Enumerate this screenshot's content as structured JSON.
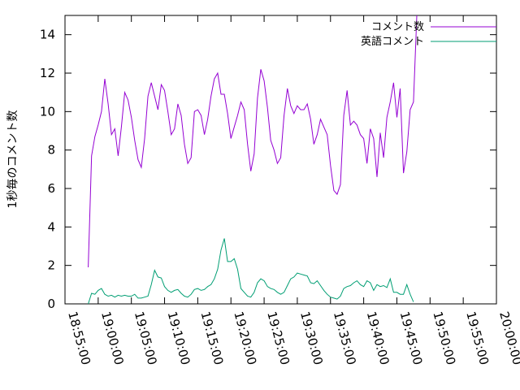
{
  "chart_data": {
    "type": "line",
    "title": "",
    "xlabel": "",
    "ylabel": "1秒毎のコメント数",
    "xlim": [
      "18:55:00",
      "20:00:00"
    ],
    "ylim": [
      0,
      15
    ],
    "yticks": [
      0,
      2,
      4,
      6,
      8,
      10,
      12,
      14
    ],
    "xticks": [
      "18:55:00",
      "19:00:00",
      "19:05:00",
      "19:10:00",
      "19:15:00",
      "19:20:00",
      "19:25:00",
      "19:30:00",
      "19:35:00",
      "19:40:00",
      "19:45:00",
      "19:50:00",
      "19:55:00",
      "20:00:00"
    ],
    "grid": false,
    "legend_position": "top-right",
    "series": [
      {
        "name": "コメント数",
        "color": "#9400d3",
        "points": [
          [
            "18:58:30",
            1.9
          ],
          [
            "18:59:00",
            7.7
          ],
          [
            "18:59:30",
            8.7
          ],
          [
            "19:00:00",
            9.3
          ],
          [
            "19:00:30",
            10.0
          ],
          [
            "19:01:00",
            11.7
          ],
          [
            "19:01:30",
            10.4
          ],
          [
            "19:02:00",
            8.8
          ],
          [
            "19:02:30",
            9.1
          ],
          [
            "19:03:00",
            7.7
          ],
          [
            "19:03:30",
            9.2
          ],
          [
            "19:04:00",
            11.0
          ],
          [
            "19:04:30",
            10.6
          ],
          [
            "19:05:00",
            9.7
          ],
          [
            "19:05:30",
            8.5
          ],
          [
            "19:06:00",
            7.5
          ],
          [
            "19:06:30",
            7.1
          ],
          [
            "19:07:00",
            8.6
          ],
          [
            "19:07:30",
            10.8
          ],
          [
            "19:08:00",
            11.5
          ],
          [
            "19:08:30",
            10.8
          ],
          [
            "19:09:00",
            10.1
          ],
          [
            "19:09:30",
            11.4
          ],
          [
            "19:10:00",
            11.1
          ],
          [
            "19:10:30",
            10.0
          ],
          [
            "19:11:00",
            8.8
          ],
          [
            "19:11:30",
            9.1
          ],
          [
            "19:12:00",
            10.4
          ],
          [
            "19:12:30",
            9.8
          ],
          [
            "19:13:00",
            8.3
          ],
          [
            "19:13:30",
            7.3
          ],
          [
            "19:14:00",
            7.6
          ],
          [
            "19:14:30",
            10.0
          ],
          [
            "19:15:00",
            10.1
          ],
          [
            "19:15:30",
            9.8
          ],
          [
            "19:16:00",
            8.8
          ],
          [
            "19:16:30",
            9.6
          ],
          [
            "19:17:00",
            10.8
          ],
          [
            "19:17:30",
            11.7
          ],
          [
            "19:18:00",
            12.0
          ],
          [
            "19:18:30",
            10.9
          ],
          [
            "19:19:00",
            10.9
          ],
          [
            "19:19:30",
            9.9
          ],
          [
            "19:20:00",
            8.6
          ],
          [
            "19:20:30",
            9.2
          ],
          [
            "19:21:00",
            9.8
          ],
          [
            "19:21:30",
            10.5
          ],
          [
            "19:22:00",
            10.1
          ],
          [
            "19:22:30",
            8.3
          ],
          [
            "19:23:00",
            6.9
          ],
          [
            "19:23:30",
            7.8
          ],
          [
            "19:24:00",
            10.7
          ],
          [
            "19:24:30",
            12.2
          ],
          [
            "19:25:00",
            11.6
          ],
          [
            "19:25:30",
            10.2
          ],
          [
            "19:26:00",
            8.5
          ],
          [
            "19:26:30",
            8.0
          ],
          [
            "19:27:00",
            7.3
          ],
          [
            "19:27:30",
            7.6
          ],
          [
            "19:28:00",
            9.8
          ],
          [
            "19:28:30",
            11.2
          ],
          [
            "19:29:00",
            10.3
          ],
          [
            "19:29:30",
            9.9
          ],
          [
            "19:30:00",
            10.3
          ],
          [
            "19:30:30",
            10.1
          ],
          [
            "19:31:00",
            10.1
          ],
          [
            "19:31:30",
            10.4
          ],
          [
            "19:32:00",
            9.6
          ],
          [
            "19:32:30",
            8.3
          ],
          [
            "19:33:00",
            8.8
          ],
          [
            "19:33:30",
            9.6
          ],
          [
            "19:34:00",
            9.2
          ],
          [
            "19:34:30",
            8.8
          ],
          [
            "19:35:00",
            7.2
          ],
          [
            "19:35:30",
            5.9
          ],
          [
            "19:36:00",
            5.7
          ],
          [
            "19:36:30",
            6.2
          ],
          [
            "19:37:00",
            9.8
          ],
          [
            "19:37:30",
            11.1
          ],
          [
            "19:38:00",
            9.3
          ],
          [
            "19:38:30",
            9.5
          ],
          [
            "19:39:00",
            9.3
          ],
          [
            "19:39:30",
            8.8
          ],
          [
            "19:40:00",
            8.6
          ],
          [
            "19:40:30",
            7.3
          ],
          [
            "19:41:00",
            9.1
          ],
          [
            "19:41:30",
            8.6
          ],
          [
            "19:42:00",
            6.6
          ],
          [
            "19:42:30",
            8.9
          ],
          [
            "19:43:00",
            7.6
          ],
          [
            "19:43:30",
            9.7
          ],
          [
            "19:44:00",
            10.5
          ],
          [
            "19:44:30",
            11.5
          ],
          [
            "19:45:00",
            9.7
          ],
          [
            "19:45:30",
            11.2
          ],
          [
            "19:46:00",
            6.8
          ],
          [
            "19:46:30",
            7.9
          ],
          [
            "19:47:00",
            10.1
          ],
          [
            "19:47:30",
            10.5
          ],
          [
            "19:48:00",
            15.0
          ]
        ]
      },
      {
        "name": "英語コメント",
        "color": "#009e73",
        "points": [
          [
            "18:58:30",
            0.0
          ],
          [
            "18:59:00",
            0.55
          ],
          [
            "18:59:30",
            0.5
          ],
          [
            "19:00:00",
            0.7
          ],
          [
            "19:00:30",
            0.8
          ],
          [
            "19:01:00",
            0.5
          ],
          [
            "19:01:30",
            0.4
          ],
          [
            "19:02:00",
            0.45
          ],
          [
            "19:02:30",
            0.35
          ],
          [
            "19:03:00",
            0.45
          ],
          [
            "19:03:30",
            0.4
          ],
          [
            "19:04:00",
            0.45
          ],
          [
            "19:04:30",
            0.4
          ],
          [
            "19:05:00",
            0.4
          ],
          [
            "19:05:30",
            0.5
          ],
          [
            "19:06:00",
            0.3
          ],
          [
            "19:06:30",
            0.3
          ],
          [
            "19:07:00",
            0.35
          ],
          [
            "19:07:30",
            0.4
          ],
          [
            "19:08:00",
            1.0
          ],
          [
            "19:08:30",
            1.75
          ],
          [
            "19:09:00",
            1.4
          ],
          [
            "19:09:30",
            1.35
          ],
          [
            "19:10:00",
            0.9
          ],
          [
            "19:10:30",
            0.7
          ],
          [
            "19:11:00",
            0.6
          ],
          [
            "19:11:30",
            0.7
          ],
          [
            "19:12:00",
            0.75
          ],
          [
            "19:12:30",
            0.55
          ],
          [
            "19:13:00",
            0.4
          ],
          [
            "19:13:30",
            0.35
          ],
          [
            "19:14:00",
            0.5
          ],
          [
            "19:14:30",
            0.75
          ],
          [
            "19:15:00",
            0.8
          ],
          [
            "19:15:30",
            0.7
          ],
          [
            "19:16:00",
            0.75
          ],
          [
            "19:16:30",
            0.9
          ],
          [
            "19:17:00",
            1.0
          ],
          [
            "19:17:30",
            1.3
          ],
          [
            "19:18:00",
            1.8
          ],
          [
            "19:18:30",
            2.8
          ],
          [
            "19:19:00",
            3.4
          ],
          [
            "19:19:30",
            2.2
          ],
          [
            "19:20:00",
            2.2
          ],
          [
            "19:20:30",
            2.35
          ],
          [
            "19:21:00",
            1.8
          ],
          [
            "19:21:30",
            0.8
          ],
          [
            "19:22:00",
            0.6
          ],
          [
            "19:22:30",
            0.4
          ],
          [
            "19:23:00",
            0.35
          ],
          [
            "19:23:30",
            0.6
          ],
          [
            "19:24:00",
            1.1
          ],
          [
            "19:24:30",
            1.3
          ],
          [
            "19:25:00",
            1.2
          ],
          [
            "19:25:30",
            0.9
          ],
          [
            "19:26:00",
            0.8
          ],
          [
            "19:26:30",
            0.75
          ],
          [
            "19:27:00",
            0.6
          ],
          [
            "19:27:30",
            0.5
          ],
          [
            "19:28:00",
            0.6
          ],
          [
            "19:28:30",
            0.95
          ],
          [
            "19:29:00",
            1.3
          ],
          [
            "19:29:30",
            1.4
          ],
          [
            "19:30:00",
            1.6
          ],
          [
            "19:30:30",
            1.55
          ],
          [
            "19:31:00",
            1.5
          ],
          [
            "19:31:30",
            1.45
          ],
          [
            "19:32:00",
            1.1
          ],
          [
            "19:32:30",
            1.05
          ],
          [
            "19:33:00",
            1.2
          ],
          [
            "19:33:30",
            0.95
          ],
          [
            "19:34:00",
            0.7
          ],
          [
            "19:34:30",
            0.5
          ],
          [
            "19:35:00",
            0.35
          ],
          [
            "19:35:30",
            0.3
          ],
          [
            "19:36:00",
            0.25
          ],
          [
            "19:36:30",
            0.4
          ],
          [
            "19:37:00",
            0.8
          ],
          [
            "19:37:30",
            0.9
          ],
          [
            "19:38:00",
            0.95
          ],
          [
            "19:38:30",
            1.1
          ],
          [
            "19:39:00",
            1.2
          ],
          [
            "19:39:30",
            1.0
          ],
          [
            "19:40:00",
            0.9
          ],
          [
            "19:40:30",
            1.2
          ],
          [
            "19:41:00",
            1.1
          ],
          [
            "19:41:30",
            0.7
          ],
          [
            "19:42:00",
            1.0
          ],
          [
            "19:42:30",
            0.9
          ],
          [
            "19:43:00",
            0.95
          ],
          [
            "19:43:30",
            0.85
          ],
          [
            "19:44:00",
            1.3
          ],
          [
            "19:44:30",
            0.6
          ],
          [
            "19:45:00",
            0.6
          ],
          [
            "19:45:30",
            0.5
          ],
          [
            "19:46:00",
            0.5
          ],
          [
            "19:46:30",
            1.0
          ],
          [
            "19:47:00",
            0.5
          ],
          [
            "19:47:30",
            0.1
          ]
        ]
      }
    ]
  }
}
